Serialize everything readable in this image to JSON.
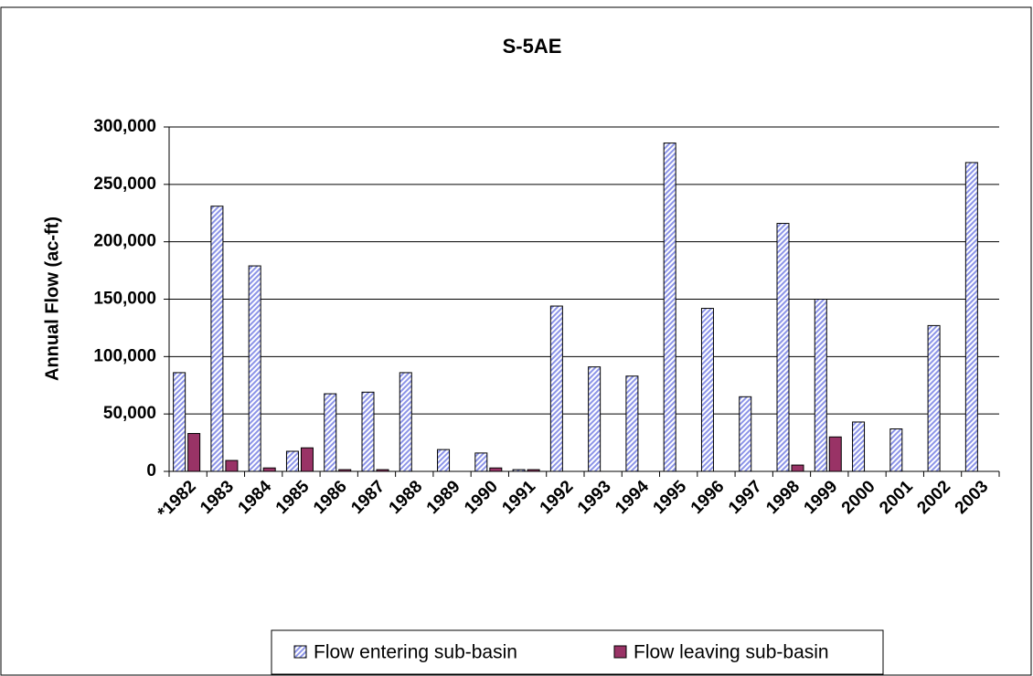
{
  "chart_data": {
    "type": "bar",
    "title": "S-5AE",
    "y_label": "Annual Flow (ac-ft)",
    "categories": [
      "*1982",
      "1983",
      "1984",
      "1985",
      "1986",
      "1987",
      "1988",
      "1989",
      "1990",
      "1991",
      "1992",
      "1993",
      "1994",
      "1995",
      "1996",
      "1997",
      "1998",
      "1999",
      "2000",
      "2001",
      "2002",
      "2003"
    ],
    "series": [
      {
        "name": "Flow entering sub-basin",
        "color": "#8c94e8",
        "hatched": true,
        "values": [
          86000,
          231000,
          179000,
          17500,
          67600,
          69000,
          86000,
          19000,
          16000,
          1500,
          144000,
          91000,
          83000,
          286000,
          142000,
          65000,
          216000,
          150000,
          43000,
          37000,
          127000,
          269000
        ]
      },
      {
        "name": "Flow leaving sub-basin",
        "color": "#993366",
        "hatched": false,
        "values": [
          33000,
          9500,
          3000,
          20500,
          1500,
          1500,
          0,
          0,
          3000,
          1500,
          0,
          0,
          0,
          0,
          0,
          0,
          5500,
          30000,
          0,
          0,
          0,
          0
        ]
      }
    ],
    "ylim": [
      0,
      300000
    ],
    "yticks": [
      0,
      {
        "value": 50000,
        "label": "50,000"
      },
      {
        "value": 100000,
        "label": "100,000"
      },
      {
        "value": 150000,
        "label": "150,000"
      },
      {
        "value": 200000,
        "label": "200,000"
      },
      {
        "value": 250000,
        "label": "250,000"
      },
      {
        "value": 300000,
        "label": "300,000"
      }
    ],
    "grid": true,
    "legend": "bottom"
  }
}
